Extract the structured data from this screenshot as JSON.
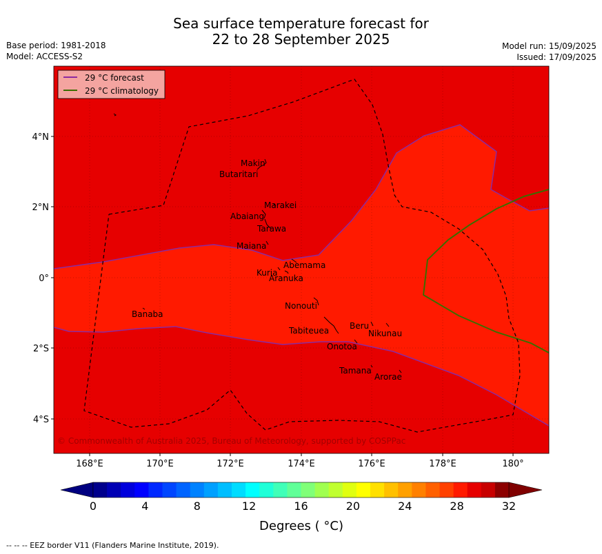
{
  "title_line1": "Sea surface temperature forecast for",
  "title_line2": "22 to 28 September 2025",
  "base_period": "Base period: 1981-2018",
  "model": "Model: ACCESS-S2",
  "model_run": "Model run: 15/09/2025",
  "issued": "Issued: 17/09/2025",
  "legend": {
    "forecast_label": "29 °C  forecast",
    "forecast_color": "#8b2aa0",
    "climatology_label": "29 °C  climatology",
    "climatology_color": "#3a6e00"
  },
  "map": {
    "lon_labels": [
      "168°E",
      "170°E",
      "172°E",
      "174°E",
      "176°E",
      "178°E",
      "180°"
    ],
    "lat_labels": [
      "4°N",
      "2°N",
      "0°",
      "2°S",
      "4°S"
    ],
    "fill_colors": {
      "above_29": "#e60000",
      "band_28_29": "#ff1a00"
    },
    "copyright": "© Commonwealth of Australia 2025, Bureau of Meteorology, supported by COSPPac",
    "islands": {
      "makin": "Makin",
      "butaritari": "Butaritari",
      "marakei": "Marakei",
      "abaiang": "Abaiang",
      "tarawa": "Tarawa",
      "maiana": "Maiana",
      "abemama": "Abemama",
      "kuria": "Kuria",
      "aranuka": "Aranuka",
      "nonouti": "Nonouti",
      "banaba": "Banaba",
      "beru": "Beru",
      "tabiteuea": "Tabiteuea",
      "nikunau": "Nikunau",
      "onotoa": "Onotoa",
      "tamana": "Tamana",
      "arorae": "Arorae"
    }
  },
  "colorbar": {
    "colors": [
      "#00008c",
      "#0000b4",
      "#0000dc",
      "#0000ff",
      "#0028ff",
      "#0046ff",
      "#0064ff",
      "#0082ff",
      "#00a0ff",
      "#00beff",
      "#00dcff",
      "#00ffff",
      "#20ffd8",
      "#40ffb8",
      "#60ff98",
      "#80ff78",
      "#a0ff50",
      "#c0ff30",
      "#e0ff10",
      "#ffff00",
      "#ffe000",
      "#ffc000",
      "#ffa000",
      "#ff8000",
      "#ff6000",
      "#ff4000",
      "#ff1a00",
      "#e60000",
      "#c80000",
      "#8c0000"
    ],
    "under_color": "#000080",
    "over_color": "#800000",
    "tick_labels": [
      "0",
      "4",
      "8",
      "12",
      "16",
      "20",
      "24",
      "28",
      "32"
    ],
    "label": "Degrees ( °C)"
  },
  "footer": "--  --  -- EEZ border V11 (Flanders Marine Institute, 2019)."
}
